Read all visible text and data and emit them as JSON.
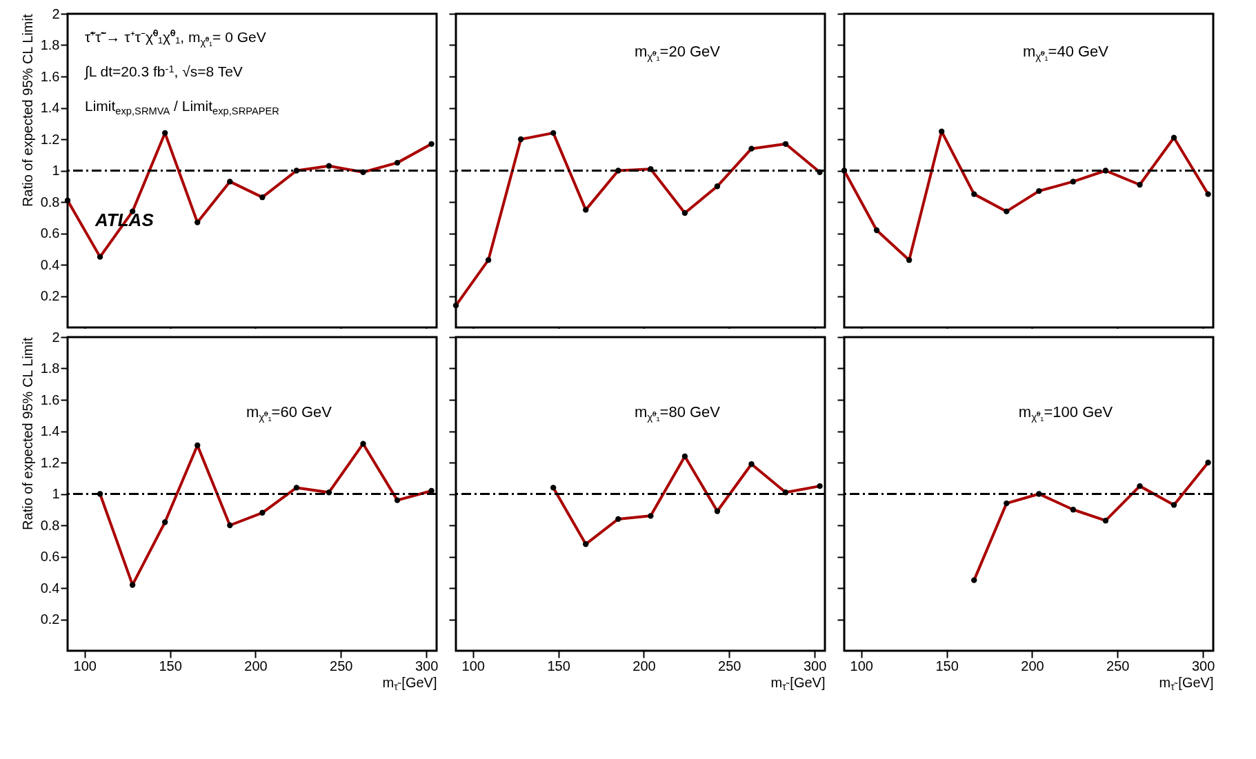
{
  "chart_data": [
    {
      "type": "line",
      "ylabel": "Ratio of expected 95% CL Limit",
      "annotations": [
        "τ̃⁺τ̃⁻→ τ⁺τ⁻χ̃⁰₁χ̃⁰₁,  m$_{χ̃⁰₁}$= 0 GeV",
        "∫L dt=20.3 fb$^{-1}$,  √s=8 TeV",
        "Limit$_{exp,SRMVA}$ / Limit$_{exp,SRPAPER}$",
        "ATLAS"
      ],
      "x": [
        90,
        109,
        128,
        147,
        166,
        185,
        204,
        224,
        243,
        263,
        283,
        303
      ],
      "series": [
        {
          "color": "#aa0000",
          "values": [
            0.81,
            0.45,
            0.74,
            1.24,
            0.67,
            0.93,
            0.83,
            1.0,
            1.03,
            0.99,
            1.05,
            1.17
          ]
        }
      ],
      "xlim": [
        90,
        306
      ],
      "xticks": [
        100,
        150,
        200,
        250,
        300
      ],
      "ylim": [
        0,
        2
      ],
      "yticks": [
        0.2,
        0.4,
        0.6,
        0.8,
        1,
        1.2,
        1.4,
        1.6,
        1.8,
        2
      ],
      "tick_labels": "y",
      "marker": "circle",
      "ref_lines": [
        {
          "axis": "y",
          "value": 1,
          "color": "#000000",
          "line_style": "dashed"
        }
      ]
    },
    {
      "type": "line",
      "annotations": [
        "m$_{χ̃⁰₁}$=20 GeV"
      ],
      "x": [
        90,
        109,
        128,
        147,
        166,
        185,
        204,
        224,
        243,
        263,
        283,
        303
      ],
      "series": [
        {
          "color": "#aa0000",
          "values": [
            0.14,
            0.43,
            1.2,
            1.24,
            0.75,
            1.0,
            1.01,
            0.73,
            0.9,
            1.14,
            1.17,
            0.99
          ]
        }
      ],
      "xlim": [
        90,
        306
      ],
      "xticks": [
        100,
        150,
        200,
        250,
        300
      ],
      "ylim": [
        0,
        2
      ],
      "yticks": [
        0.2,
        0.4,
        0.6,
        0.8,
        1,
        1.2,
        1.4,
        1.6,
        1.8,
        2
      ],
      "tick_labels": false,
      "marker": "circle",
      "ref_lines": [
        {
          "axis": "y",
          "value": 1,
          "color": "#000000",
          "line_style": "dashed"
        }
      ]
    },
    {
      "type": "line",
      "annotations": [
        "m$_{χ̃⁰₁}$=40 GeV"
      ],
      "x": [
        90,
        109,
        128,
        147,
        166,
        185,
        204,
        224,
        243,
        263,
        283,
        303
      ],
      "series": [
        {
          "color": "#aa0000",
          "values": [
            1.0,
            0.62,
            0.43,
            1.25,
            0.85,
            0.74,
            0.87,
            0.93,
            1.0,
            0.91,
            1.21,
            0.85
          ]
        }
      ],
      "xlim": [
        90,
        306
      ],
      "xticks": [
        100,
        150,
        200,
        250,
        300
      ],
      "ylim": [
        0,
        2
      ],
      "yticks": [
        0.2,
        0.4,
        0.6,
        0.8,
        1,
        1.2,
        1.4,
        1.6,
        1.8,
        2
      ],
      "tick_labels": false,
      "marker": "circle",
      "ref_lines": [
        {
          "axis": "y",
          "value": 1,
          "color": "#000000",
          "line_style": "dashed"
        }
      ]
    },
    {
      "type": "line",
      "xlabel": "m$_{τ̃}$ [GeV]",
      "ylabel": "Ratio of expected 95% CL Limit",
      "annotations": [
        "m$_{χ̃⁰₁}$=60 GeV"
      ],
      "series": [
        {
          "color": "#aa0000",
          "x": [
            109,
            128,
            147,
            166,
            185,
            204,
            224,
            243,
            263,
            283,
            303
          ],
          "values": [
            1.0,
            0.42,
            0.82,
            1.31,
            0.8,
            0.88,
            1.04,
            1.01,
            1.32,
            0.96,
            1.02
          ]
        }
      ],
      "xlim": [
        90,
        306
      ],
      "xticks": [
        100,
        150,
        200,
        250,
        300
      ],
      "ylim": [
        0,
        2
      ],
      "yticks": [
        0.2,
        0.4,
        0.6,
        0.8,
        1,
        1.2,
        1.4,
        1.6,
        1.8,
        2
      ],
      "marker": "circle",
      "ref_lines": [
        {
          "axis": "y",
          "value": 1,
          "color": "#000000",
          "line_style": "dashed"
        }
      ]
    },
    {
      "type": "line",
      "xlabel": "m$_{τ̃}$ [GeV]",
      "annotations": [
        "m$_{χ̃⁰₁}$=80 GeV"
      ],
      "series": [
        {
          "color": "#aa0000",
          "x": [
            147,
            166,
            185,
            204,
            224,
            243,
            263,
            283,
            303
          ],
          "values": [
            1.04,
            0.68,
            0.84,
            0.86,
            1.24,
            0.89,
            1.19,
            1.01,
            1.05
          ]
        }
      ],
      "xlim": [
        90,
        306
      ],
      "xticks": [
        100,
        150,
        200,
        250,
        300
      ],
      "ylim": [
        0,
        2
      ],
      "yticks": [
        0.2,
        0.4,
        0.6,
        0.8,
        1,
        1.2,
        1.4,
        1.6,
        1.8,
        2
      ],
      "tick_labels": "x",
      "marker": "circle",
      "ref_lines": [
        {
          "axis": "y",
          "value": 1,
          "color": "#000000",
          "line_style": "dashed"
        }
      ]
    },
    {
      "type": "line",
      "xlabel": "m$_{τ̃}$ [GeV]",
      "annotations": [
        "m$_{χ̃⁰₁}$=100 GeV"
      ],
      "series": [
        {
          "color": "#aa0000",
          "x": [
            166,
            185,
            204,
            224,
            243,
            263,
            283,
            303
          ],
          "values": [
            0.45,
            0.94,
            1.0,
            0.9,
            0.83,
            1.05,
            0.93,
            1.2
          ]
        }
      ],
      "xlim": [
        90,
        306
      ],
      "xticks": [
        100,
        150,
        200,
        250,
        300
      ],
      "ylim": [
        0,
        2
      ],
      "yticks": [
        0.2,
        0.4,
        0.6,
        0.8,
        1,
        1.2,
        1.4,
        1.6,
        1.8,
        2
      ],
      "tick_labels": "x",
      "marker": "circle",
      "ref_lines": [
        {
          "axis": "y",
          "value": 1,
          "color": "#000000",
          "line_style": "dashed"
        }
      ]
    }
  ]
}
